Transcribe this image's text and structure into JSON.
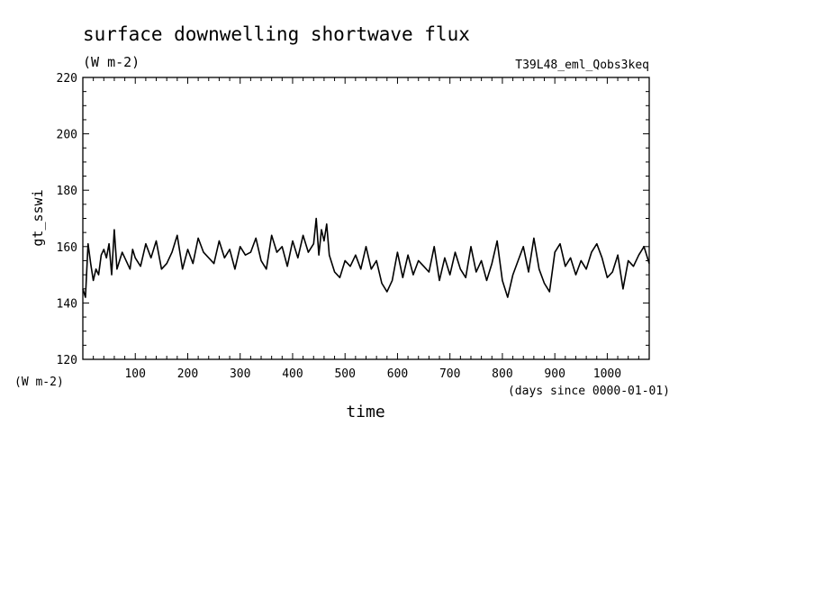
{
  "chart_data": {
    "type": "line",
    "title": "surface downwelling shortwave flux",
    "units": "(W m-2)",
    "run_label": "T39L48_eml_Qobs3keq",
    "xlabel": "time",
    "x_units": "(days since 0000-01-01)",
    "ylabel": "gt_sswi",
    "y_units": "(W m-2)",
    "xlim": [
      0,
      1080
    ],
    "ylim": [
      120,
      220
    ],
    "x_ticks": [
      100,
      200,
      300,
      400,
      500,
      600,
      700,
      800,
      900,
      1000
    ],
    "y_ticks": [
      120,
      140,
      160,
      180,
      200,
      220
    ],
    "grid": false,
    "series": [
      {
        "x": [
          0,
          5,
          10,
          15,
          20,
          25,
          30,
          35,
          40,
          45,
          50,
          55,
          60,
          65,
          70,
          75,
          80,
          85,
          90,
          95,
          100,
          110,
          120,
          130,
          140,
          150,
          160,
          170,
          180,
          190,
          200,
          210,
          220,
          230,
          240,
          250,
          260,
          270,
          280,
          290,
          300,
          310,
          320,
          330,
          340,
          350,
          360,
          370,
          380,
          390,
          400,
          410,
          420,
          430,
          440,
          445,
          450,
          455,
          460,
          465,
          470,
          480,
          490,
          500,
          510,
          520,
          530,
          540,
          550,
          560,
          570,
          580,
          590,
          600,
          610,
          620,
          630,
          640,
          650,
          660,
          670,
          680,
          690,
          700,
          710,
          720,
          730,
          740,
          750,
          760,
          770,
          780,
          790,
          800,
          810,
          820,
          830,
          840,
          850,
          860,
          870,
          880,
          890,
          900,
          910,
          920,
          930,
          940,
          950,
          960,
          970,
          980,
          990,
          1000,
          1010,
          1020,
          1030,
          1040,
          1050,
          1060,
          1070,
          1080
        ],
        "y": [
          145,
          142,
          161,
          154,
          148,
          152,
          150,
          157,
          159,
          156,
          161,
          150,
          166,
          152,
          155,
          158,
          156,
          154,
          152,
          159,
          156,
          153,
          161,
          156,
          162,
          152,
          154,
          158,
          164,
          152,
          159,
          154,
          163,
          158,
          156,
          154,
          162,
          156,
          159,
          152,
          160,
          157,
          158,
          163,
          155,
          152,
          164,
          158,
          160,
          153,
          162,
          156,
          164,
          158,
          161,
          170,
          157,
          166,
          162,
          168,
          157,
          151,
          149,
          155,
          153,
          157,
          152,
          160,
          152,
          155,
          147,
          144,
          148,
          158,
          149,
          157,
          150,
          155,
          153,
          151,
          160,
          148,
          156,
          150,
          158,
          152,
          149,
          160,
          151,
          155,
          148,
          154,
          162,
          148,
          142,
          150,
          155,
          160,
          151,
          163,
          152,
          147,
          144,
          158,
          161,
          153,
          156,
          150,
          155,
          152,
          158,
          161,
          156,
          149,
          151,
          157,
          145,
          155,
          153,
          157,
          160,
          154
        ]
      }
    ]
  }
}
